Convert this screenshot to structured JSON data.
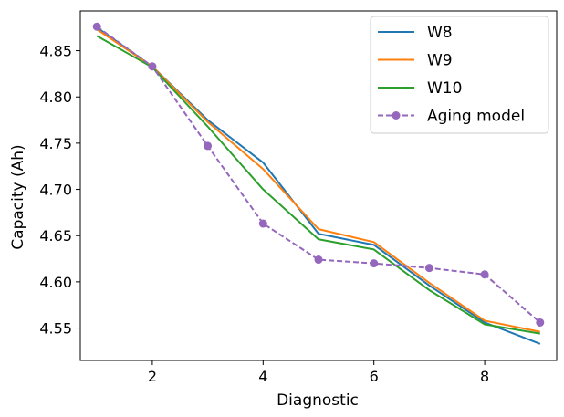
{
  "chart_data": {
    "type": "line",
    "xlabel": "Diagnostic",
    "ylabel": "Capacity (Ah)",
    "xlim": [
      0.7,
      9.3
    ],
    "ylim": [
      4.515,
      4.893
    ],
    "xticks": [
      2,
      4,
      6,
      8
    ],
    "yticks": [
      4.55,
      4.6,
      4.65,
      4.7,
      4.75,
      4.8,
      4.85
    ],
    "xtick_labels": [
      "2",
      "4",
      "6",
      "8"
    ],
    "ytick_labels": [
      "4.55",
      "4.60",
      "4.65",
      "4.70",
      "4.75",
      "4.80",
      "4.85"
    ],
    "legend_position": "top-right",
    "x": [
      1,
      2,
      3,
      4,
      5,
      6,
      7,
      8,
      9
    ],
    "series": [
      {
        "name": "W8",
        "color": "#1f77b4",
        "style": "solid",
        "marker": "none",
        "values": [
          4.875,
          4.833,
          4.775,
          4.729,
          4.652,
          4.64,
          4.596,
          4.556,
          4.533
        ]
      },
      {
        "name": "W9",
        "color": "#ff7f0e",
        "style": "solid",
        "marker": "none",
        "values": [
          4.873,
          4.833,
          4.773,
          4.722,
          4.657,
          4.643,
          4.599,
          4.558,
          4.546
        ]
      },
      {
        "name": "W10",
        "color": "#2ca02c",
        "style": "solid",
        "marker": "none",
        "values": [
          4.866,
          4.832,
          4.768,
          4.7,
          4.646,
          4.635,
          4.591,
          4.554,
          4.544
        ]
      },
      {
        "name": "Aging model",
        "color": "#9467bd",
        "style": "dashed",
        "marker": "circle",
        "values": [
          4.876,
          4.833,
          4.747,
          4.663,
          4.624,
          4.62,
          4.615,
          4.608,
          4.556
        ]
      }
    ]
  }
}
